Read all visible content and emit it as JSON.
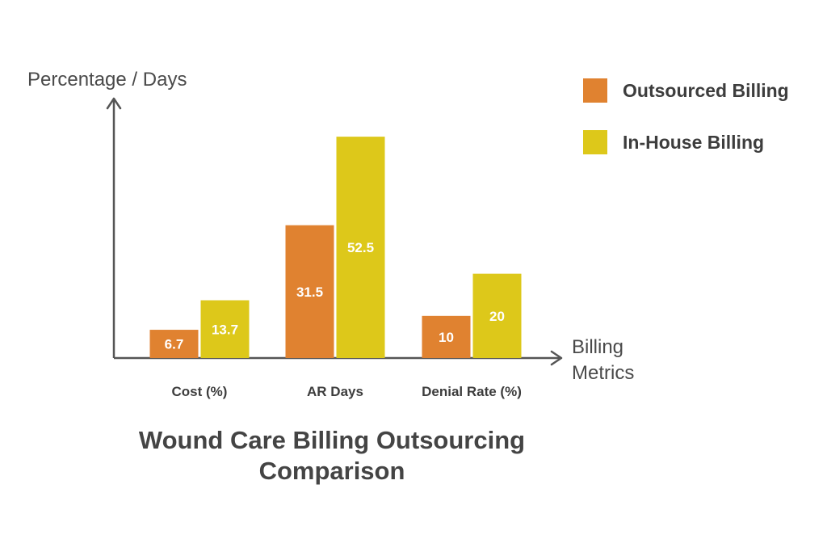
{
  "chart_data": {
    "type": "bar",
    "title_lines": [
      "Wound Care Billing Outsourcing",
      "Comparison"
    ],
    "ylabel": "Percentage / Days",
    "xlabel_lines": [
      "Billing",
      "Metrics"
    ],
    "categories": [
      "Cost (%)",
      "AR Days",
      "Denial Rate (%)"
    ],
    "series": [
      {
        "name": "Outsourced Billing",
        "color": "#E08230",
        "values": [
          6.7,
          31.5,
          10
        ]
      },
      {
        "name": "In-House Billing",
        "color": "#DDC81A",
        "values": [
          13.7,
          52.5,
          20
        ]
      }
    ],
    "ylim": [
      0,
      60
    ],
    "grid": false,
    "legend_position": "top-right"
  }
}
